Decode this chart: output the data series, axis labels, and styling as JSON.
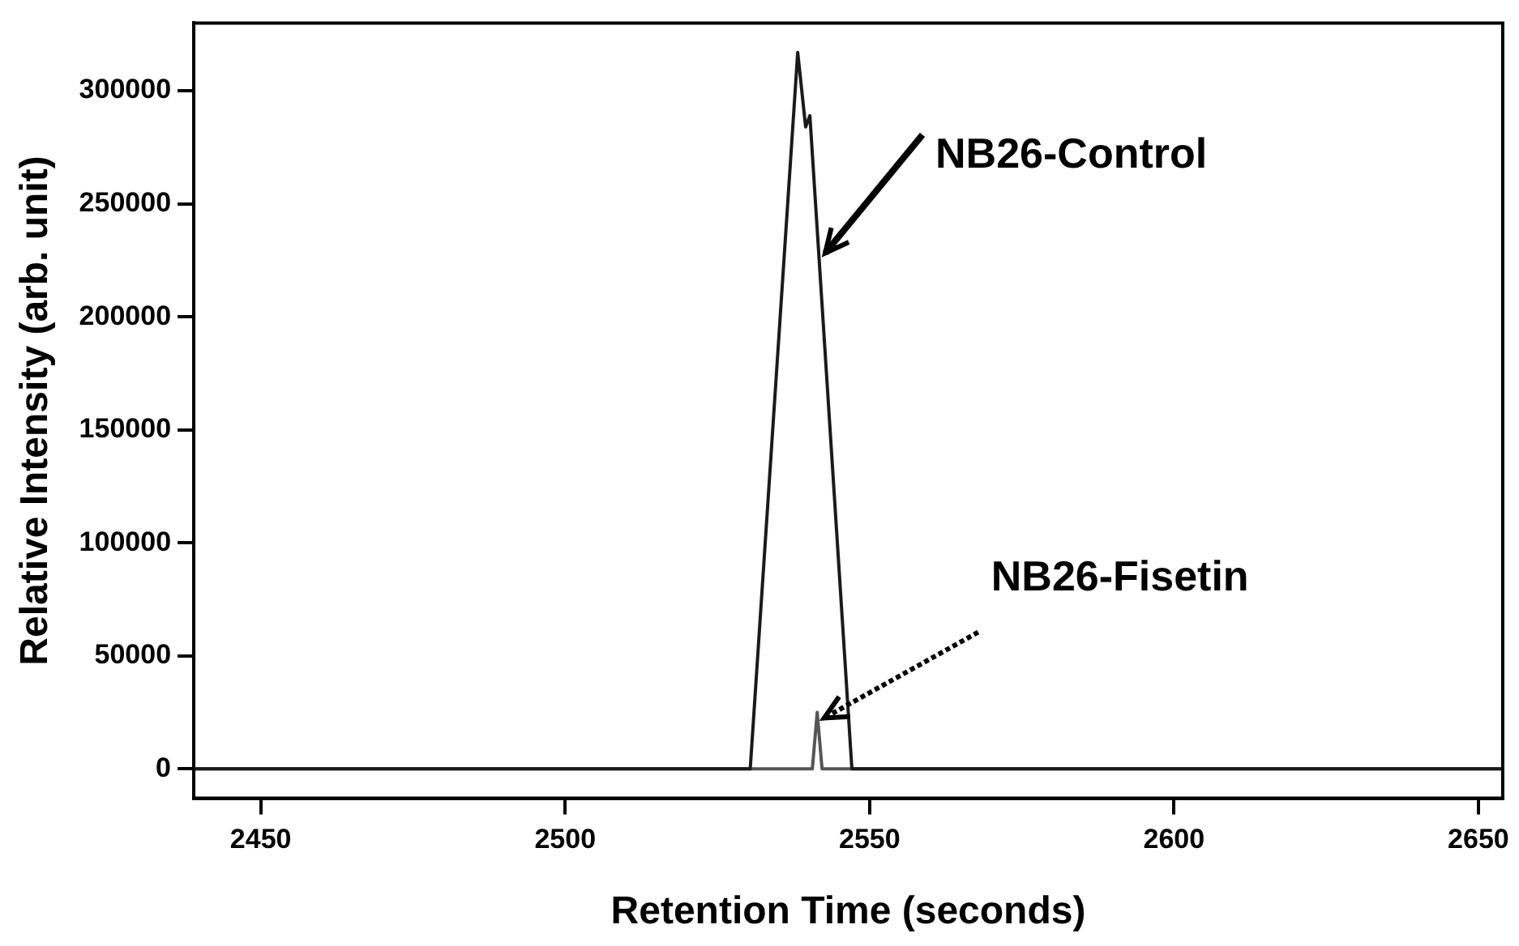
{
  "chart_data": {
    "type": "line",
    "xlabel": "Retention Time (seconds)",
    "ylabel": "Relative Intensity (arb. unit)",
    "xlim": [
      2439,
      2654
    ],
    "xticks": [
      2450,
      2500,
      2550,
      2600,
      2650
    ],
    "ylim": [
      -13000,
      330000
    ],
    "yticks": [
      0,
      50000,
      100000,
      150000,
      200000,
      250000,
      300000
    ],
    "grid": false,
    "legend": false,
    "marker": "none",
    "line_style": "solid",
    "series": [
      {
        "name": "NB26-Control",
        "color": "#1a1a1a",
        "x": [
          2439,
          2530.4,
          2538.2,
          2539.5,
          2540.2,
          2547.1,
          2654
        ],
        "values": [
          0,
          0,
          317000,
          284000,
          289000,
          0,
          0
        ]
      },
      {
        "name": "NB26-Fisetin",
        "color": "#555555",
        "x": [
          2439,
          2540.6,
          2541.4,
          2542.2,
          2654
        ],
        "values": [
          0,
          0,
          25000,
          0,
          0
        ]
      }
    ]
  }
}
